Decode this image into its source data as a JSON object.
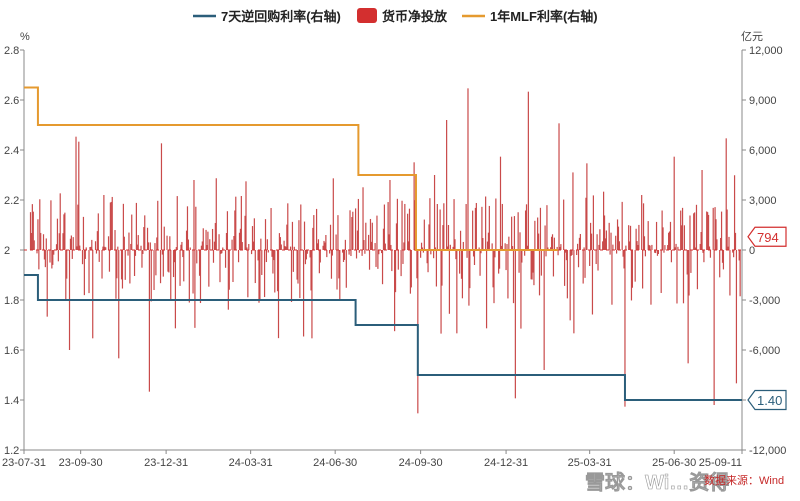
{
  "chart_data": {
    "type": "bar+line",
    "legend": [
      {
        "name": "7天逆回购利率(右轴)",
        "color": "#2b5e7a",
        "kind": "line"
      },
      {
        "name": "货币净投放",
        "color": "#d32f2f",
        "kind": "box"
      },
      {
        "name": "1年MLF利率(右轴)",
        "color": "#e59a2f",
        "kind": "line"
      }
    ],
    "left_unit": "%",
    "right_unit": "亿元",
    "left_axis": {
      "min": 1.2,
      "max": 2.8,
      "ticks": [
        "2.8",
        "2.6",
        "2.4",
        "2.2",
        "2",
        "1.8",
        "1.6",
        "1.4",
        "1.2"
      ]
    },
    "right_axis": {
      "min": -12000,
      "max": 12000,
      "ticks": [
        "12,000",
        "9,000",
        "6,000",
        "3,000",
        "0",
        "-3,000",
        "-6,000",
        "-9,000",
        "-12,000"
      ]
    },
    "x_ticks": [
      {
        "label": "23-07-31",
        "date": "2023-07-31"
      },
      {
        "label": "23-09-30",
        "date": "2023-09-30"
      },
      {
        "label": "23-12-31",
        "date": "2023-12-31"
      },
      {
        "label": "24-03-31",
        "date": "2024-03-31"
      },
      {
        "label": "24-06-30",
        "date": "2024-06-30"
      },
      {
        "label": "24-09-30",
        "date": "2024-09-30"
      },
      {
        "label": "24-12-31",
        "date": "2024-12-31"
      },
      {
        "label": "25-03-31",
        "date": "2025-03-31"
      },
      {
        "label": "25-06-30",
        "date": "2025-06-30"
      },
      {
        "label": "25-09-11",
        "date": "2025-09-11"
      }
    ],
    "x_range": [
      "2023-07-31",
      "2025-09-11"
    ],
    "series_reverse_repo": {
      "name": "7天逆回购利率(右轴)",
      "unit": "%",
      "steps": [
        {
          "date": "2023-07-31",
          "value": 1.9
        },
        {
          "date": "2023-08-15",
          "value": 1.8
        },
        {
          "date": "2024-07-22",
          "value": 1.7
        },
        {
          "date": "2024-09-27",
          "value": 1.5
        },
        {
          "date": "2025-05-08",
          "value": 1.4
        },
        {
          "date": "2025-09-11",
          "value": 1.4
        }
      ]
    },
    "series_mlf": {
      "name": "1年MLF利率(右轴)",
      "unit": "%",
      "steps": [
        {
          "date": "2023-07-31",
          "value": 2.65
        },
        {
          "date": "2023-08-15",
          "value": 2.5
        },
        {
          "date": "2024-07-25",
          "value": 2.3
        },
        {
          "date": "2024-09-25",
          "value": 2.0
        },
        {
          "date": "2025-02-25",
          "value": 2.0
        }
      ]
    },
    "net_injection_bars": {
      "name": "货币净投放",
      "unit": "亿元",
      "samples": [
        {
          "date": "2023-08-10",
          "value": 2300
        },
        {
          "date": "2023-08-25",
          "value": -4000
        },
        {
          "date": "2023-09-08",
          "value": 3400
        },
        {
          "date": "2023-09-18",
          "value": -6000
        },
        {
          "date": "2023-09-25",
          "value": 6800
        },
        {
          "date": "2023-09-28",
          "value": 6500
        },
        {
          "date": "2023-10-13",
          "value": -5300
        },
        {
          "date": "2023-10-25",
          "value": 3300
        },
        {
          "date": "2023-11-10",
          "value": -6500
        },
        {
          "date": "2023-11-25",
          "value": 3700
        },
        {
          "date": "2023-12-13",
          "value": -8500
        },
        {
          "date": "2023-12-26",
          "value": 6400
        },
        {
          "date": "2024-01-10",
          "value": -4700
        },
        {
          "date": "2024-01-30",
          "value": 4200
        },
        {
          "date": "2024-02-15",
          "value": -2200
        },
        {
          "date": "2024-03-15",
          "value": 3200
        },
        {
          "date": "2024-04-10",
          "value": -3000
        },
        {
          "date": "2024-05-10",
          "value": 2800
        },
        {
          "date": "2024-06-05",
          "value": -5300
        },
        {
          "date": "2024-06-28",
          "value": 4300
        },
        {
          "date": "2024-07-20",
          "value": 5700
        },
        {
          "date": "2024-08-10",
          "value": -6300
        },
        {
          "date": "2024-08-28",
          "value": 4200
        },
        {
          "date": "2024-09-27",
          "value": -9800
        },
        {
          "date": "2024-10-15",
          "value": 4500
        },
        {
          "date": "2024-10-28",
          "value": 7800
        },
        {
          "date": "2024-11-08",
          "value": -5000
        },
        {
          "date": "2024-11-20",
          "value": 9700
        },
        {
          "date": "2024-12-10",
          "value": -4700
        },
        {
          "date": "2024-12-25",
          "value": 5600
        },
        {
          "date": "2025-01-10",
          "value": -8900
        },
        {
          "date": "2025-01-24",
          "value": 9500
        },
        {
          "date": "2025-02-10",
          "value": -7200
        },
        {
          "date": "2025-02-26",
          "value": 7600
        },
        {
          "date": "2025-03-14",
          "value": -5000
        },
        {
          "date": "2025-03-28",
          "value": 5200
        },
        {
          "date": "2025-04-15",
          "value": 3500
        },
        {
          "date": "2025-05-08",
          "value": -9400
        },
        {
          "date": "2025-05-28",
          "value": 2800
        },
        {
          "date": "2025-06-15",
          "value": -3300
        },
        {
          "date": "2025-06-30",
          "value": 5600
        },
        {
          "date": "2025-07-15",
          "value": -6800
        },
        {
          "date": "2025-07-30",
          "value": 4800
        },
        {
          "date": "2025-08-12",
          "value": -9300
        },
        {
          "date": "2025-08-25",
          "value": 6700
        },
        {
          "date": "2025-09-05",
          "value": -8000
        },
        {
          "date": "2025-09-11",
          "value": 794
        }
      ]
    },
    "callouts": [
      {
        "text": "794",
        "axis": "right",
        "value": 794,
        "color": "#d32f2f"
      },
      {
        "text": "1.40",
        "axis": "left",
        "value": 1.4,
        "color": "#2b5e7a"
      }
    ]
  },
  "source": "数据来源：Wind",
  "watermark": "雪球：Wi…资得"
}
